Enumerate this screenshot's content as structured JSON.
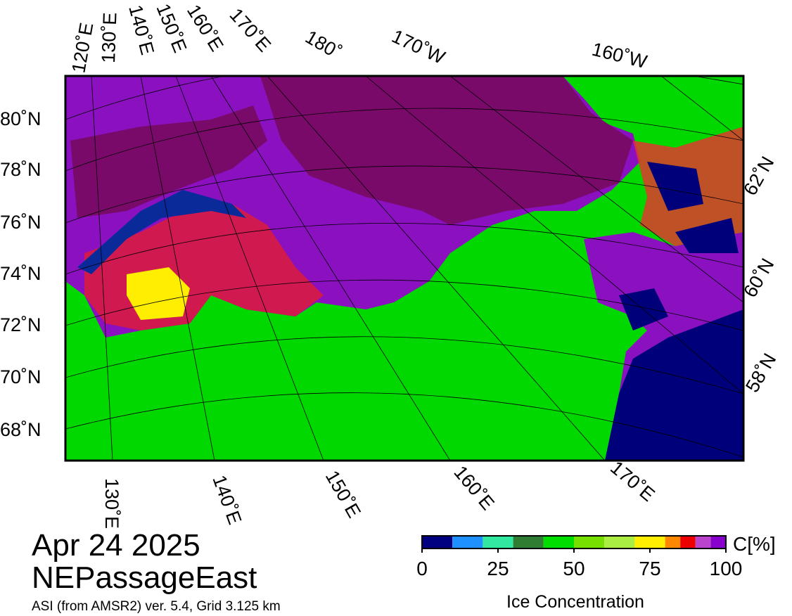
{
  "map": {
    "graticule_labels": {
      "top": [
        "120˚E",
        "130˚E",
        "140˚E",
        "150˚E",
        "160˚E",
        "170˚E",
        "180˚",
        "170˚W",
        "160˚W"
      ],
      "left": [
        "80˚N",
        "78˚N",
        "76˚N",
        "74˚N",
        "72˚N",
        "70˚N",
        "68˚N"
      ],
      "right": [
        "62˚N",
        "60˚N",
        "58˚N"
      ],
      "bottom": [
        "130˚E",
        "140˚E",
        "150˚E",
        "160˚E",
        "170˚E"
      ]
    }
  },
  "date": "Apr 24 2025",
  "region": "NEPassageEast",
  "source": "ASI (from AMSR2) ver. 5.4,  Grid 3.125 km",
  "colorbar": {
    "bins": [
      0,
      10,
      20,
      30,
      40,
      50,
      60,
      70,
      80,
      85,
      90,
      95,
      100
    ],
    "colors": [
      "#000080",
      "#1e90ff",
      "#30e8a0",
      "#2e7d32",
      "#00dd00",
      "#77e000",
      "#aaee44",
      "#ffee00",
      "#ff8800",
      "#ee0000",
      "#bb44cc",
      "#8800cc"
    ],
    "ticks": [
      0,
      25,
      50,
      75,
      100
    ],
    "unit_label": "C[%]",
    "title": "Ice Concentration"
  }
}
